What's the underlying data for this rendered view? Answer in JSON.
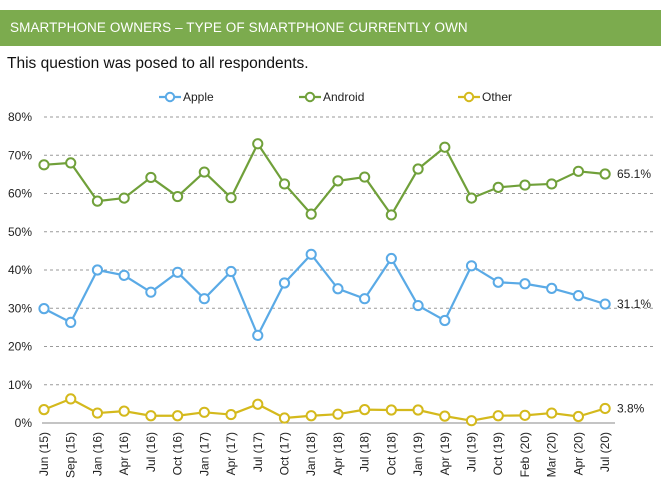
{
  "header": {
    "title": "SMARTPHONE OWNERS – TYPE OF SMARTPHONE CURRENTLY OWN"
  },
  "subtitle": "This question was posed to all respondents.",
  "chart_data": {
    "type": "line",
    "categories": [
      "Jun (15)",
      "Sep (15)",
      "Jan (16)",
      "Apr (16)",
      "Jul (16)",
      "Oct (16)",
      "Jan (17)",
      "Apr (17)",
      "Jul (17)",
      "Oct (17)",
      "Jan (18)",
      "Apr (18)",
      "Jul (18)",
      "Oct (18)",
      "Jan (19)",
      "Apr (19)",
      "Jul (19)",
      "Oct (19)",
      "Feb (20)",
      "Mar (20)",
      "Apr (20)",
      "Jul (20)"
    ],
    "series": [
      {
        "name": "Apple",
        "color": "#5aaae6",
        "values": [
          29.9,
          26.3,
          40.0,
          38.6,
          34.2,
          39.4,
          32.5,
          39.6,
          22.9,
          36.6,
          44.1,
          35.1,
          32.5,
          43.0,
          30.7,
          26.8,
          41.1,
          36.8,
          36.4,
          35.2,
          33.3,
          31.1
        ],
        "end_label": "31.1%"
      },
      {
        "name": "Android",
        "color": "#70a03a",
        "values": [
          67.5,
          68.0,
          58.0,
          58.8,
          64.2,
          59.2,
          65.6,
          58.9,
          73.0,
          62.5,
          54.6,
          63.3,
          64.3,
          54.4,
          66.4,
          72.1,
          58.8,
          61.6,
          62.2,
          62.5,
          65.8,
          65.1
        ],
        "end_label": "65.1%"
      },
      {
        "name": "Other",
        "color": "#d4b91c",
        "values": [
          3.5,
          6.3,
          2.6,
          3.1,
          1.9,
          1.9,
          2.8,
          2.2,
          4.9,
          1.3,
          1.9,
          2.3,
          3.5,
          3.4,
          3.4,
          1.8,
          0.6,
          1.9,
          2.0,
          2.6,
          1.7,
          3.8
        ],
        "end_label": "3.8%"
      }
    ],
    "y_ticks": [
      "0%",
      "10%",
      "20%",
      "30%",
      "40%",
      "50%",
      "60%",
      "70%",
      "80%"
    ],
    "ylim": [
      0,
      80
    ],
    "grid": "horizontal dashed",
    "legend_position": "top"
  }
}
